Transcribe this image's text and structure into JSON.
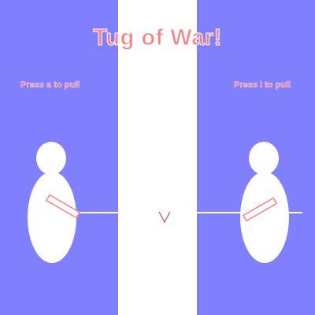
{
  "game": {
    "title": "Tug of War!",
    "player_left": {
      "instruction": "Press a to pull",
      "key": "a"
    },
    "player_right": {
      "instruction": "Press l to pull",
      "key": "l"
    },
    "center_marker": "V"
  },
  "colors": {
    "panel": "#8080ff",
    "center": "#ffffff",
    "title_text": "#ff8080",
    "instruction_text": "#ff8080",
    "player": "#ffffff",
    "rope": "#ffffff",
    "arm": "#ff8080",
    "marker": "#c04080"
  }
}
